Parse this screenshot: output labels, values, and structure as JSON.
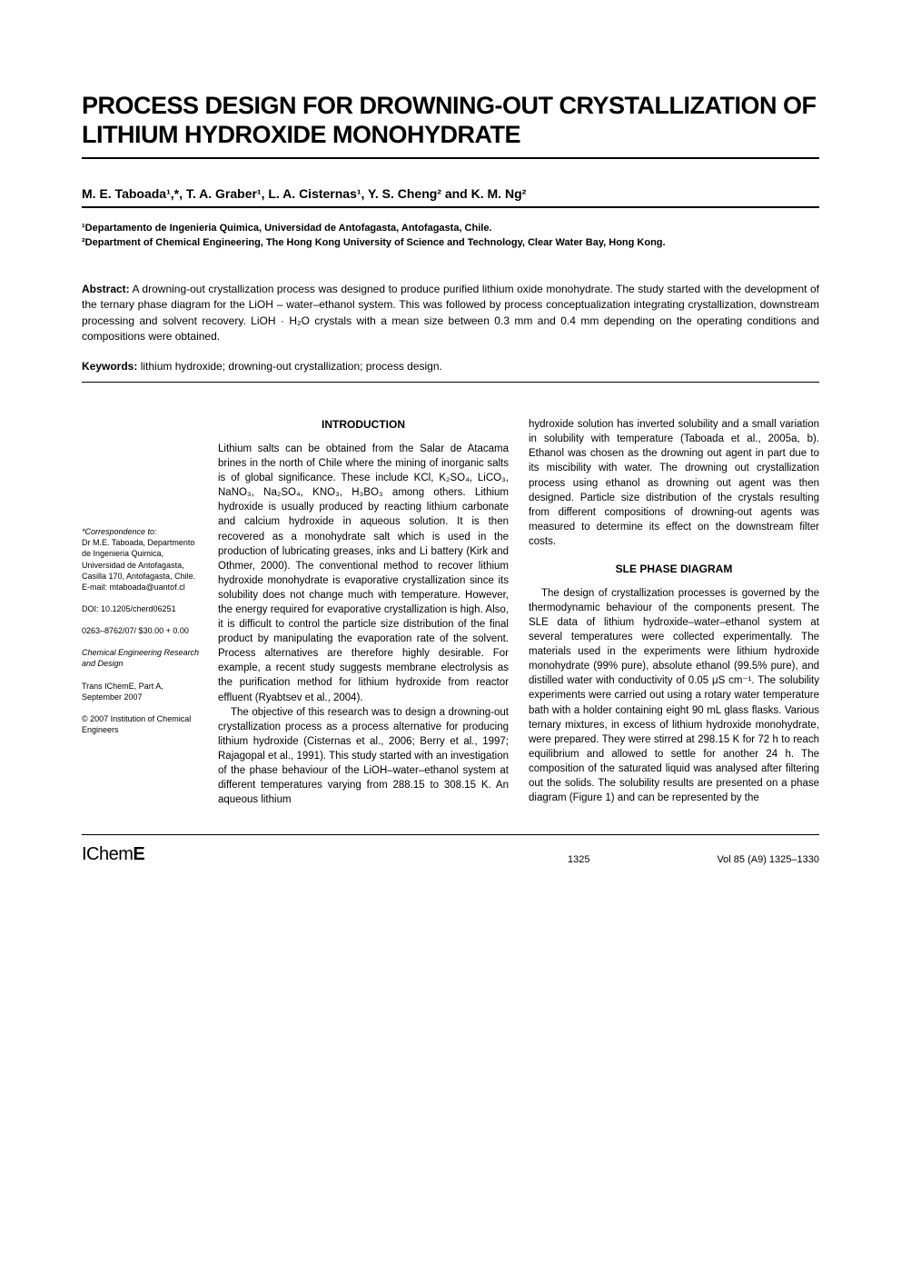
{
  "title": "PROCESS DESIGN FOR DROWNING-OUT CRYSTALLIZATION OF LITHIUM HYDROXIDE MONOHYDRATE",
  "authors": "M. E. Taboada¹,*, T. A. Graber¹, L. A. Cisternas¹, Y. S. Cheng² and K. M. Ng²",
  "affiliation1": "¹Departamento de Ingenieria Quimica, Universidad de Antofagasta, Antofagasta, Chile.",
  "affiliation2": "²Department of Chemical Engineering, The Hong Kong University of Science and Technology, Clear Water Bay, Hong Kong.",
  "abstract_label": "Abstract:",
  "abstract_text": " A drowning-out crystallization process was designed to produce purified lithium oxide monohydrate. The study started with the development of the ternary phase diagram for the LiOH – water–ethanol system. This was followed by process conceptualization integrating crystallization, downstream processing and solvent recovery. LiOH · H₂O crystals with a mean size between 0.3 mm and 0.4 mm depending on the operating conditions and compositions were obtained.",
  "keywords_label": "Keywords:",
  "keywords_text": " lithium hydroxide; drowning-out crystallization; process design.",
  "intro_heading": "INTRODUCTION",
  "intro_para1": "Lithium salts can be obtained from the Salar de Atacama brines in the north of Chile where the mining of inorganic salts is of global significance. These include KCl, K₂SO₄, LiCO₃, NaNO₃, Na₂SO₄, KNO₃, H₃BO₃ among others. Lithium hydroxide is usually produced by reacting lithium carbonate and calcium hydroxide in aqueous solution. It is then recovered as a monohydrate salt which is used in the production of lubricating greases, inks and Li battery (Kirk and Othmer, 2000). The conventional method to recover lithium hydroxide monohydrate is evaporative crystallization since its solubility does not change much with temperature. However, the energy required for evaporative crystallization is high. Also, it is difficult to control the particle size distribution of the final product by manipulating the evaporation rate of the solvent. Process alternatives are therefore highly desirable. For example, a recent study suggests membrane electrolysis as the purification method for lithium hydroxide from reactor effluent (Ryabtsev et al., 2004).",
  "intro_para2": "The objective of this research was to design a drowning-out crystallization process as a process alternative for producing lithium hydroxide (Cisternas et al., 2006; Berry et al., 1997; Rajagopal et al., 1991). This study started with an investigation of the phase behaviour of the LiOH–water–ethanol system at different temperatures varying from 288.15 to 308.15 K. An aqueous lithium",
  "col2_para1": "hydroxide solution has inverted solubility and a small variation in solubility with temperature (Taboada et al., 2005a, b). Ethanol was chosen as the drowning out agent in part due to its miscibility with water. The drowning out crystallization process using ethanol as drowning out agent was then designed. Particle size distribution of the crystals resulting from different compositions of drowning-out agents was measured to determine its effect on the downstream filter costs.",
  "sle_heading": "SLE PHASE DIAGRAM",
  "sle_para1": "The design of crystallization processes is governed by the thermodynamic behaviour of the components present. The SLE data of lithium hydroxide–water–ethanol system at several temperatures were collected experimentally. The materials used in the experiments were lithium hydroxide monohydrate (99% pure), absolute ethanol (99.5% pure), and distilled water with conductivity of 0.05 μS cm⁻¹. The solubility experiments were carried out using a rotary water temperature bath with a holder containing eight 90 mL glass flasks. Various ternary mixtures, in excess of lithium hydroxide monohydrate, were prepared. They were stirred at 298.15 K for 72 h to reach equilibrium and allowed to settle for another 24 h. The composition of the saturated liquid was analysed after filtering out the solids. The solubility results are presented on a phase diagram (Figure 1) and can be represented by the",
  "sidebar": {
    "correspondence_label": "*Correspondence to:",
    "correspondence_text": "Dr M.E. Taboada, Departmento de Ingenieria Quimica, Universidad de Antofagasta, Casilla 170, Antofagasta, Chile.",
    "email": "E-mail: mtaboada@uantof.cl",
    "doi": "DOI: 10.1205/cherd06251",
    "issn": "0263–8762/07/ $30.00 + 0.00",
    "journal": "Chemical Engineering Research and Design",
    "trans": "Trans IChemE, Part A, September 2007",
    "copyright": "© 2007 Institution of Chemical Engineers"
  },
  "footer": {
    "logo_prefix": "IChem",
    "logo_suffix": "E",
    "page": "1325",
    "volume": "Vol 85 (A9) 1325–1330"
  }
}
